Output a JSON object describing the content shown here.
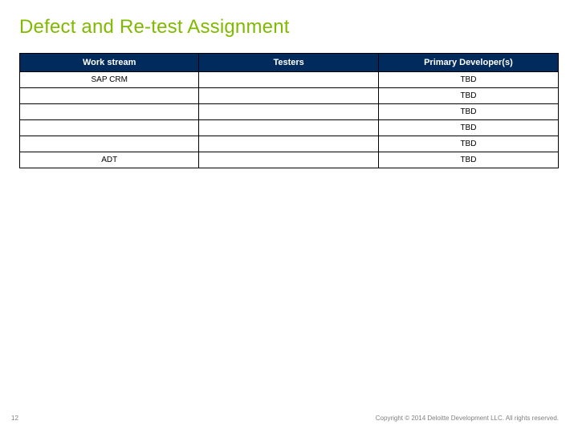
{
  "title": "Defect and Re-test Assignment",
  "table": {
    "columns": [
      "Work stream",
      "Testers",
      "Primary Developer(s)"
    ],
    "rows": [
      {
        "workstream": "SAP CRM",
        "testers": "",
        "developers": "TBD"
      },
      {
        "workstream": "",
        "testers": "",
        "developers": "TBD"
      },
      {
        "workstream": "",
        "testers": "",
        "developers": "TBD"
      },
      {
        "workstream": "",
        "testers": "",
        "developers": "TBD"
      },
      {
        "workstream": "",
        "testers": "",
        "developers": "TBD"
      },
      {
        "workstream": "ADT",
        "testers": "",
        "developers": "TBD"
      }
    ],
    "header_bg": "#002b5c",
    "header_text_color": "#ffffff",
    "border_color": "#000000",
    "cell_bg": "#ffffff",
    "font_size_header": 11,
    "font_size_cell": 10
  },
  "footer": {
    "page_number": "12",
    "copyright": "Copyright © 2014 Deloitte Development LLC. All rights reserved."
  },
  "colors": {
    "title_color": "#7fba00",
    "background": "#ffffff",
    "footer_text": "#808080"
  }
}
